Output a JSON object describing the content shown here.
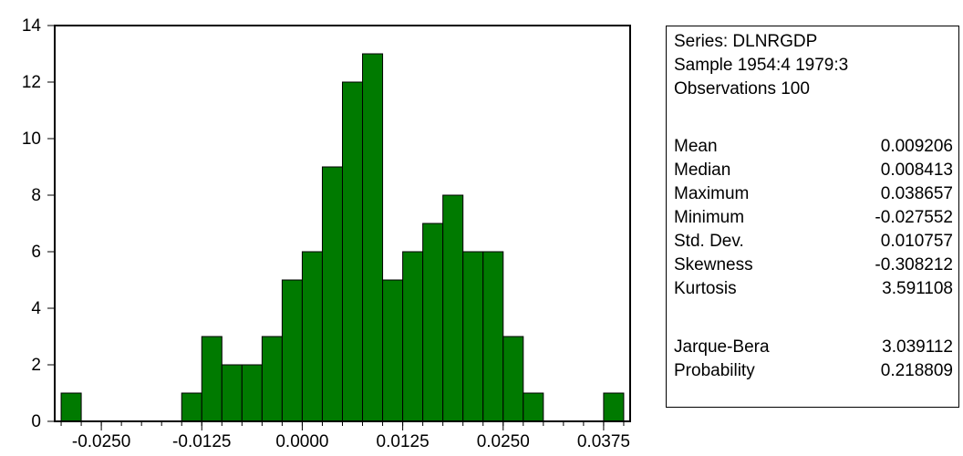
{
  "chart_data": {
    "type": "bar",
    "bin_width": 0.0025,
    "bins": [
      {
        "x_start": -0.03,
        "x_end": -0.0275,
        "count": 1
      },
      {
        "x_start": -0.0275,
        "x_end": -0.025,
        "count": 0
      },
      {
        "x_start": -0.025,
        "x_end": -0.0225,
        "count": 0
      },
      {
        "x_start": -0.0225,
        "x_end": -0.02,
        "count": 0
      },
      {
        "x_start": -0.02,
        "x_end": -0.0175,
        "count": 0
      },
      {
        "x_start": -0.0175,
        "x_end": -0.015,
        "count": 0
      },
      {
        "x_start": -0.015,
        "x_end": -0.0125,
        "count": 1
      },
      {
        "x_start": -0.0125,
        "x_end": -0.01,
        "count": 3
      },
      {
        "x_start": -0.01,
        "x_end": -0.0075,
        "count": 2
      },
      {
        "x_start": -0.0075,
        "x_end": -0.005,
        "count": 2
      },
      {
        "x_start": -0.005,
        "x_end": -0.0025,
        "count": 3
      },
      {
        "x_start": -0.0025,
        "x_end": 0.0,
        "count": 5
      },
      {
        "x_start": 0.0,
        "x_end": 0.0025,
        "count": 6
      },
      {
        "x_start": 0.0025,
        "x_end": 0.005,
        "count": 9
      },
      {
        "x_start": 0.005,
        "x_end": 0.0075,
        "count": 12
      },
      {
        "x_start": 0.0075,
        "x_end": 0.01,
        "count": 13
      },
      {
        "x_start": 0.01,
        "x_end": 0.0125,
        "count": 5
      },
      {
        "x_start": 0.0125,
        "x_end": 0.015,
        "count": 6
      },
      {
        "x_start": 0.015,
        "x_end": 0.0175,
        "count": 7
      },
      {
        "x_start": 0.0175,
        "x_end": 0.02,
        "count": 8
      },
      {
        "x_start": 0.02,
        "x_end": 0.0225,
        "count": 6
      },
      {
        "x_start": 0.0225,
        "x_end": 0.025,
        "count": 6
      },
      {
        "x_start": 0.025,
        "x_end": 0.0275,
        "count": 3
      },
      {
        "x_start": 0.0275,
        "x_end": 0.03,
        "count": 1
      },
      {
        "x_start": 0.03,
        "x_end": 0.0325,
        "count": 0
      },
      {
        "x_start": 0.0325,
        "x_end": 0.035,
        "count": 0
      },
      {
        "x_start": 0.035,
        "x_end": 0.0375,
        "count": 0
      },
      {
        "x_start": 0.0375,
        "x_end": 0.04,
        "count": 1
      }
    ],
    "xlim": [
      -0.0308,
      0.0408
    ],
    "ylim": [
      0,
      14
    ],
    "x_ticks": [
      -0.025,
      -0.0125,
      0.0,
      0.0125,
      0.025,
      0.0375
    ],
    "x_tick_labels": [
      "-0.0250",
      "-0.0125",
      "0.0000",
      "0.0125",
      "0.0250",
      "0.0375"
    ],
    "y_ticks": [
      0,
      2,
      4,
      6,
      8,
      10,
      12,
      14
    ],
    "y_tick_labels": [
      "0",
      "2",
      "4",
      "6",
      "8",
      "10",
      "12",
      "14"
    ],
    "x_minor_tick_step": 0.0025,
    "bar_color": "#007a00",
    "bar_edge_color": "#000000",
    "grid": false,
    "title": "",
    "xlabel": "",
    "ylabel": ""
  },
  "stats": {
    "series_line": "Series: DLNRGDP",
    "sample_line": "Sample 1954:4 1979:3",
    "observations_line": "Observations 100",
    "group1": [
      {
        "label": "Mean",
        "value": "0.009206"
      },
      {
        "label": "Median",
        "value": "0.008413"
      },
      {
        "label": "Maximum",
        "value": "0.038657"
      },
      {
        "label": "Minimum",
        "value": "-0.027552"
      },
      {
        "label": "Std. Dev.",
        "value": "0.010757"
      },
      {
        "label": "Skewness",
        "value": "-0.308212"
      },
      {
        "label": "Kurtosis",
        "value": "3.591108"
      }
    ],
    "group2": [
      {
        "label": "Jarque-Bera",
        "value": "3.039112"
      },
      {
        "label": "Probability",
        "value": "0.218809"
      }
    ]
  }
}
